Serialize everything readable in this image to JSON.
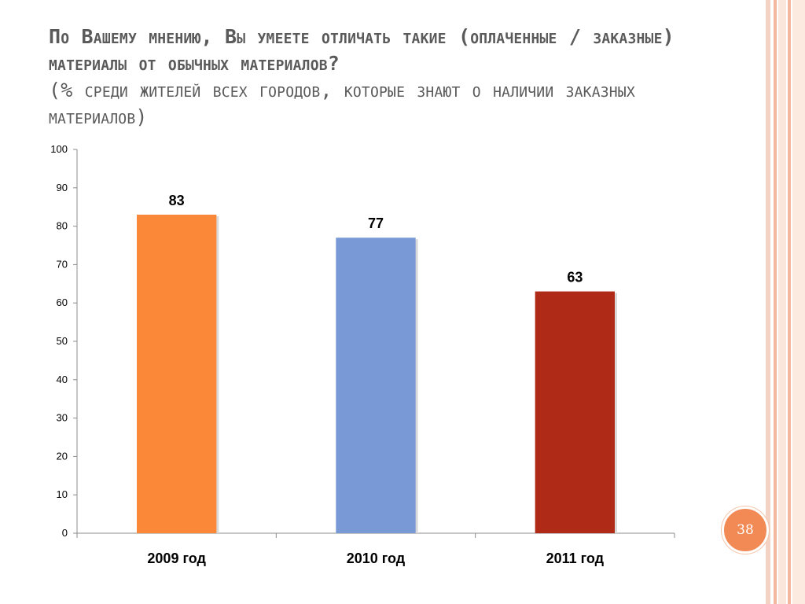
{
  "slide": {
    "question": "По Вашему мнению, Вы умеете отличать такие (оплаченные / заказные) материалы от обычных материалов?",
    "subtitle": "(% среди жителей всех городов, которые знают о наличии заказных материалов)",
    "page_number": "38"
  },
  "colors": {
    "bar_2009": "#fa8838",
    "bar_2010": "#7899d6",
    "bar_2011": "#b02b17",
    "title_text": "#5a5a5a",
    "badge": "#f28a55"
  },
  "chart_data": {
    "type": "bar",
    "categories": [
      "2009 год",
      "2010 год",
      "2011 год"
    ],
    "values": [
      83,
      77,
      63
    ],
    "value_labels": [
      "83",
      "77",
      "63"
    ],
    "bar_colors": [
      "#fa8838",
      "#7899d6",
      "#b02b17"
    ],
    "ylim": [
      0,
      100
    ],
    "yticks": [
      "0",
      "10",
      "20",
      "30",
      "40",
      "50",
      "60",
      "70",
      "80",
      "90",
      "100"
    ],
    "title": "",
    "xlabel": "",
    "ylabel": "",
    "grid": false,
    "legend": "none"
  }
}
